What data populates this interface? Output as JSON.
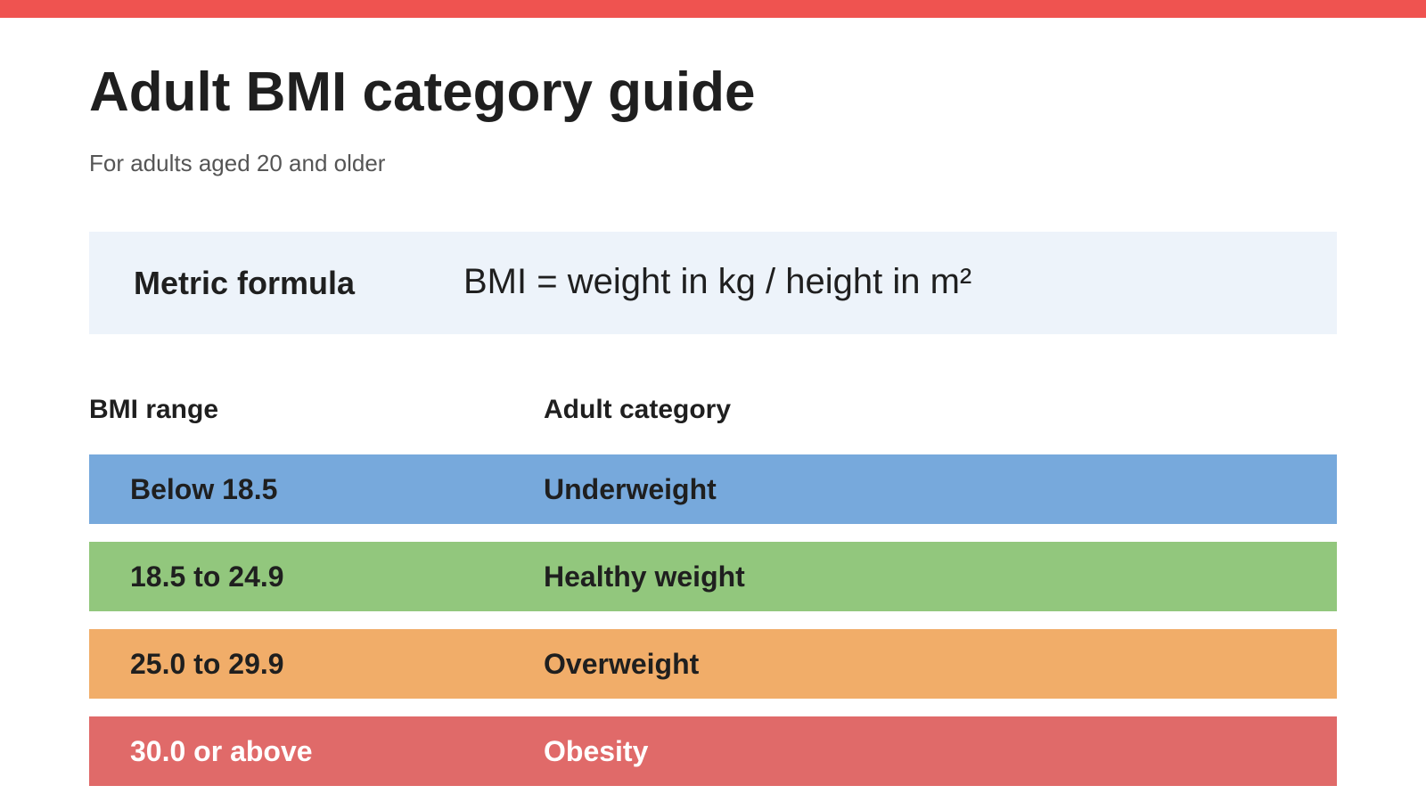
{
  "colors": {
    "accent_bar": "#ef5350",
    "formula_background": "#edf3fa"
  },
  "page": {
    "title": "Adult BMI category guide",
    "subtitle": "For adults aged 20 and older"
  },
  "formula": {
    "label": "Metric formula",
    "text": "BMI = weight in kg / height in m²"
  },
  "table": {
    "headers": {
      "range": "BMI range",
      "category": "Adult category"
    },
    "rows": [
      {
        "range": "Below 18.5",
        "category": "Underweight",
        "color": "#77a9dc",
        "text_color": "#1f1f1f"
      },
      {
        "range": "18.5 to 24.9",
        "category": "Healthy weight",
        "color": "#92c77d",
        "text_color": "#1f1f1f"
      },
      {
        "range": "25.0 to 29.9",
        "category": "Overweight",
        "color": "#f1ad69",
        "text_color": "#1f1f1f"
      },
      {
        "range": "30.0 or above",
        "category": "Obesity",
        "color": "#e06a69",
        "text_color": "#ffffff"
      }
    ]
  }
}
